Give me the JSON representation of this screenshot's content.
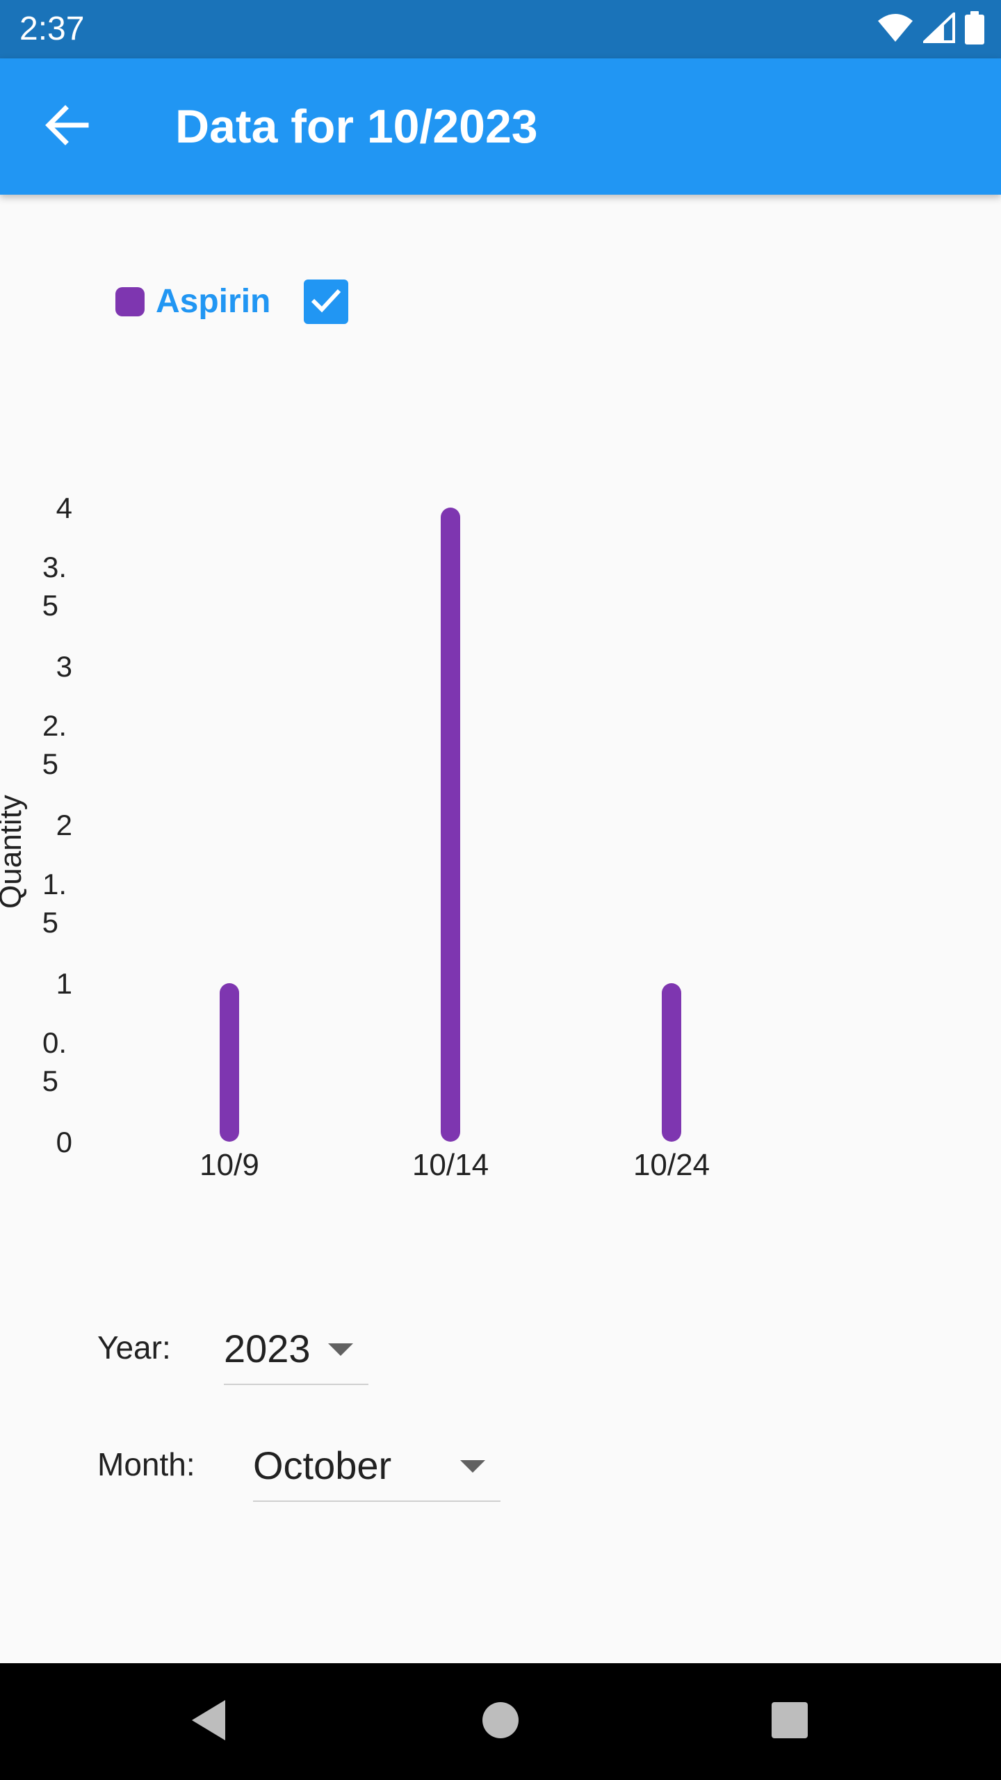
{
  "status_bar": {
    "time": "2:37",
    "icons": [
      "wifi-icon",
      "signal-icon",
      "battery-icon"
    ]
  },
  "app_bar": {
    "title": "Data for 10/2023",
    "back_icon": "arrow-back-icon"
  },
  "legend": {
    "series_name": "Aspirin",
    "color": "#7e36b0",
    "checked": true
  },
  "chart_data": {
    "type": "bar",
    "ylabel": "Quantity",
    "xlabel": "",
    "categories": [
      "10/9",
      "10/14",
      "10/24"
    ],
    "series": [
      {
        "name": "Aspirin",
        "values": [
          1,
          4,
          1
        ],
        "color": "#7e36b0"
      }
    ],
    "ylim": [
      0,
      4
    ],
    "yticks": [
      {
        "value": 0,
        "lines": [
          "0"
        ]
      },
      {
        "value": 0.5,
        "lines": [
          "0.",
          "5"
        ]
      },
      {
        "value": 1,
        "lines": [
          "1"
        ]
      },
      {
        "value": 1.5,
        "lines": [
          "1.",
          "5"
        ]
      },
      {
        "value": 2,
        "lines": [
          "2"
        ]
      },
      {
        "value": 2.5,
        "lines": [
          "2.",
          "5"
        ]
      },
      {
        "value": 3,
        "lines": [
          "3"
        ]
      },
      {
        "value": 3.5,
        "lines": [
          "3.",
          "5"
        ]
      },
      {
        "value": 4,
        "lines": [
          "4"
        ]
      }
    ],
    "grid": false,
    "legend": "top-left"
  },
  "form": {
    "year_label": "Year:",
    "year_value": "2023",
    "month_label": "Month:",
    "month_value": "October"
  },
  "colors": {
    "status_bar": "#1a73b9",
    "app_bar": "#2196f3",
    "accent": "#2196f3",
    "series": "#7e36b0",
    "nav_bar": "#000000"
  },
  "nav_bar": {
    "icons": [
      "back-triangle-icon",
      "home-circle-icon",
      "recents-square-icon"
    ]
  }
}
